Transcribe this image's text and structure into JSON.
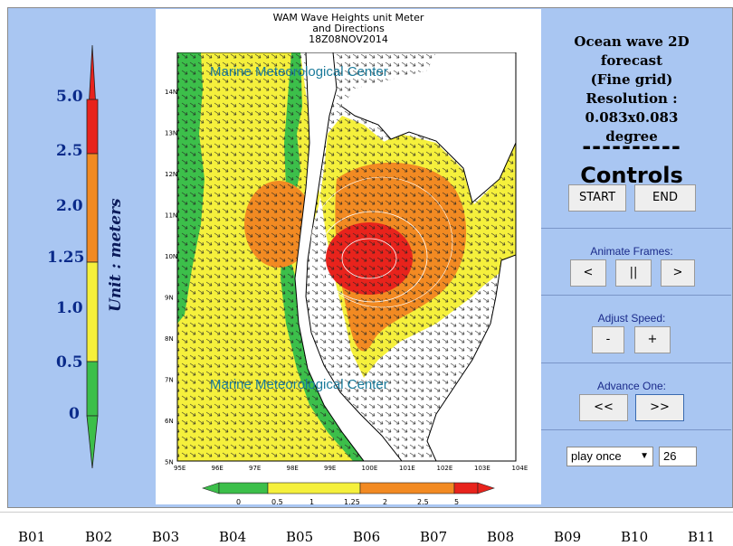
{
  "scale": {
    "labels": [
      "5.0",
      "2.5",
      "2.0",
      "1.25",
      "1.0",
      "0.5",
      "0"
    ],
    "unit_text": "Unit : meters"
  },
  "map": {
    "title_lines": [
      "WAM Wave Heights unit Meter",
      "and Directions",
      "18Z08NOV2014"
    ],
    "watermark": "Marine Meteorological Center",
    "lat_labels": [
      "14N",
      "13N",
      "12N",
      "11N",
      "10N",
      "9N",
      "8N",
      "7N",
      "6N",
      "5N"
    ],
    "lon_labels": [
      "95E",
      "96E",
      "97E",
      "98E",
      "99E",
      "100E",
      "101E",
      "102E",
      "103E",
      "104E"
    ],
    "colorbar_labels": [
      "0",
      "0.5",
      "1",
      "1.25",
      "2",
      "2.5",
      "5"
    ],
    "colors": {
      "green": "#3cbf4a",
      "yellow": "#f5f03c",
      "orange": "#f28a22",
      "red": "#e8231c",
      "land": "#ffffff"
    }
  },
  "info": {
    "lines": [
      "Ocean wave 2D forecast",
      "(Fine grid)",
      "Resolution : 0.083x0.083",
      "degree"
    ],
    "dashes": "----------"
  },
  "controls": {
    "title": "Controls",
    "start": "START",
    "end": "END",
    "animate_label": "Animate Frames:",
    "prev": "<",
    "pause": "||",
    "next": ">",
    "speed_label": "Adjust Speed:",
    "slower": "-",
    "faster": "+",
    "advance_label": "Advance One:",
    "back": "<<",
    "forward": ">>",
    "mode": "play once",
    "frame": "26"
  },
  "bottom": {
    "links": [
      "B01",
      "B02",
      "B03",
      "B04",
      "B05",
      "B06",
      "B07",
      "B08",
      "B09",
      "B10",
      "B11"
    ]
  }
}
